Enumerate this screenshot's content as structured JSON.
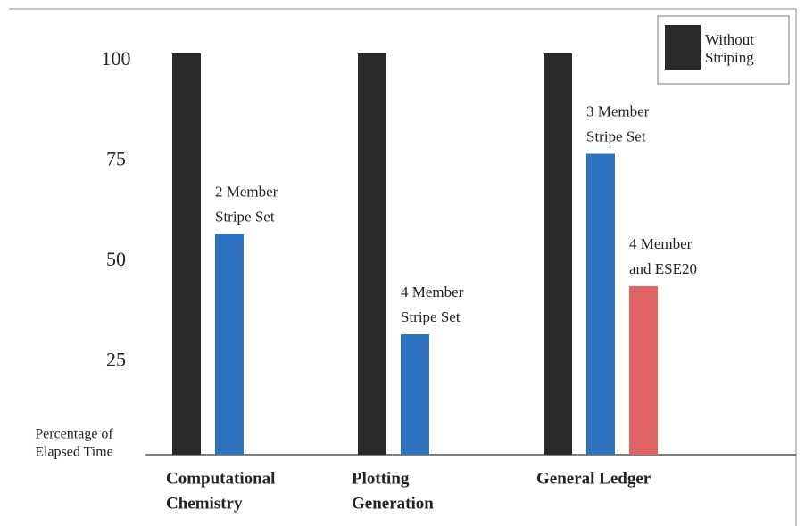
{
  "chart_data": {
    "type": "bar",
    "ylabel": [
      "Percentage of",
      "Elapsed Time"
    ],
    "categories": [
      [
        "Computational",
        "Chemistry"
      ],
      [
        "Plotting",
        "Generation"
      ],
      [
        "General Ledger"
      ]
    ],
    "series": [
      {
        "name": [
          "Without",
          "Striping"
        ],
        "color": "#2a2a2a",
        "values": [
          100,
          100,
          100
        ]
      },
      {
        "color": "#2f74c0",
        "values": [
          55,
          30,
          75
        ],
        "labels": [
          [
            "2 Member",
            "Stripe Set"
          ],
          [
            "4 Member",
            "Stripe Set"
          ],
          [
            "3 Member",
            "Stripe Set"
          ]
        ]
      },
      {
        "color": "#e06464",
        "values": [
          null,
          null,
          42
        ],
        "labels": [
          null,
          null,
          [
            "4 Member",
            "and ESE20"
          ]
        ]
      }
    ],
    "ylim": [
      0,
      100
    ],
    "yticks": [
      25,
      50,
      75,
      100
    ],
    "legend": "upper right"
  }
}
